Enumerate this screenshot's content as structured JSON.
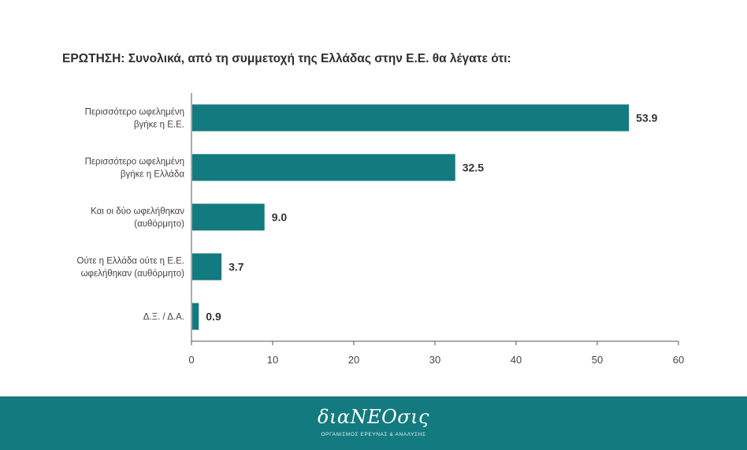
{
  "title": "ΕΡΩΤΗΣΗ: Συνολικά, από τη συμμετοχή της Ελλάδας στην Ε.Ε. θα λέγατε ότι:",
  "colors": {
    "bar": "#137a7f",
    "footer": "#137a7f",
    "axis": "#555555"
  },
  "chart_data": {
    "type": "bar",
    "orientation": "horizontal",
    "title": "ΕΡΩΤΗΣΗ: Συνολικά, από τη συμμετοχή της Ελλάδας στην Ε.Ε. θα λέγατε ότι:",
    "categories": [
      [
        "Περισσότερο ωφελημένη",
        "βγήκε η Ε.Ε."
      ],
      [
        "Περισσότερο ωφελημένη",
        "βγήκε η Ελλάδα"
      ],
      [
        "Και οι δύο ωφελήθηκαν",
        "(αυθόρμητο)"
      ],
      [
        "Ούτε η Ελλάδα ούτε η Ε.Ε.",
        "ωφελήθηκαν (αυθόρμητο)"
      ],
      [
        "Δ.Ξ. / Δ.Α."
      ]
    ],
    "values": [
      53.9,
      32.5,
      9.0,
      3.7,
      0.9
    ],
    "value_labels": [
      "53.9",
      "32.5",
      "9.0",
      "3.7",
      "0.9"
    ],
    "xlim": [
      0,
      60
    ],
    "xticks": [
      0,
      10,
      20,
      30,
      40,
      50,
      60
    ],
    "grid": false,
    "legend": "none"
  },
  "footer": {
    "logo_text": "διαNEOσις",
    "logo_subtitle": "ΟΡΓΑΝΙΣΜΟΣ ΕΡΕΥΝΑΣ & ΑΝΑΛΥΣΗΣ"
  }
}
